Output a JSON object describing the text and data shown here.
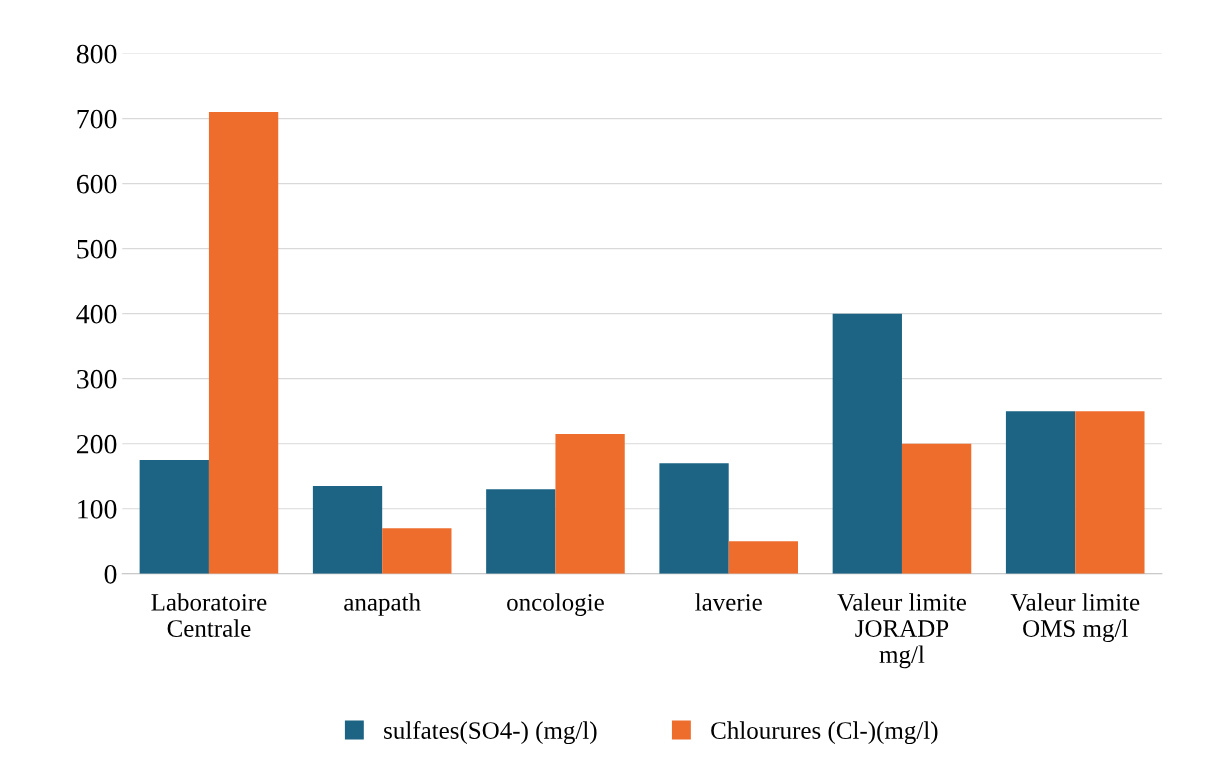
{
  "chart_data": {
    "type": "bar",
    "categories": [
      "Laboratoire\nCentrale",
      "anapath",
      "oncologie",
      "laverie",
      "Valeur limite\nJORADP\nmg/l",
      "Valeur limite\nOMS mg/l"
    ],
    "series": [
      {
        "name": "sulfates(SO4-) (mg/l)",
        "color": "#1d6384",
        "values": [
          175,
          135,
          130,
          170,
          400,
          250
        ]
      },
      {
        "name": "Chlourures (Cl-)(mg/l)",
        "color": "#ee6d2c",
        "values": [
          710,
          70,
          215,
          50,
          200,
          250
        ]
      }
    ],
    "ylim": [
      0,
      800
    ],
    "yticks": [
      0,
      100,
      200,
      300,
      400,
      500,
      600,
      700,
      800
    ],
    "grid": "y",
    "legend": "bottom"
  }
}
